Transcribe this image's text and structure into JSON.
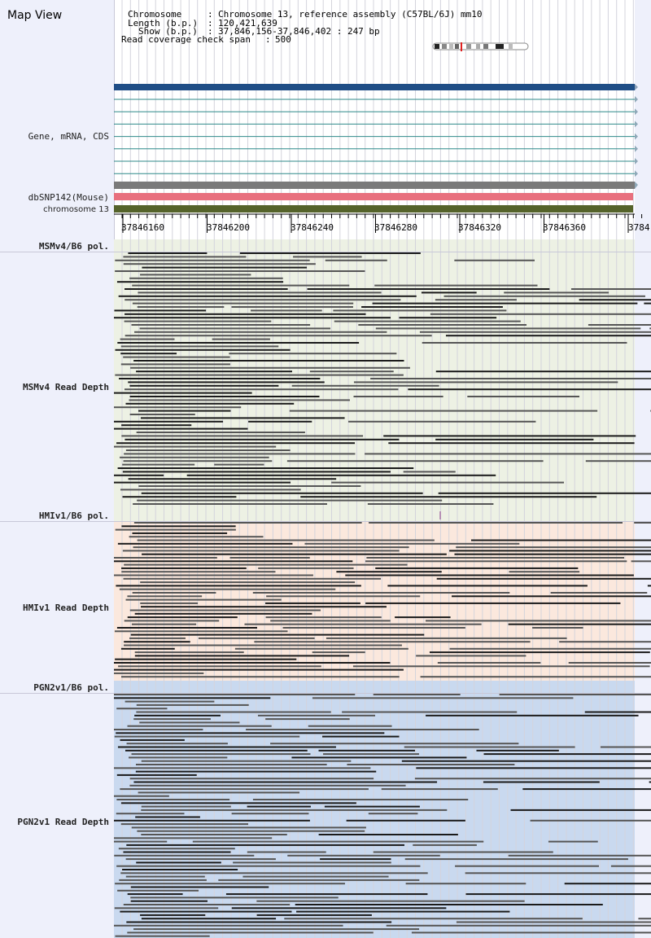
{
  "title": "Map View",
  "info": {
    "chromosome_label": "Chromosome",
    "chromosome_value": "Chromosome 13, reference assembly (C57BL/6J) mm10",
    "length_label": "Length (b.p.)",
    "length_value": "120,421,639",
    "show_label": "Show (b.p.)",
    "show_value": "37,846,156-37,846,402 : 247 bp",
    "read_cov_label": "Read coverage check span",
    "read_cov_value": "500"
  },
  "tracks": {
    "gene": "Gene, mRNA, CDS",
    "dbsnp": "dbSNP142(Mouse)",
    "chromosome": "chromosome 13",
    "msm_pol": "MSMv4/B6 pol.",
    "msm_depth": "MSMv4 Read Depth",
    "hmi_pol": "HMIv1/B6 pol.",
    "hmi_depth": "HMIv1 Read Depth",
    "pgn_pol": "PGN2v1/B6 pol.",
    "pgn_depth": "PGN2v1 Read Depth"
  },
  "ruler": {
    "ticks": [
      "37846160",
      "37846200",
      "37846240",
      "37846280",
      "37846320",
      "37846360",
      "3784"
    ]
  },
  "colors": {
    "gene_main": "#1f4e86",
    "gene_transcript": "#2f8a8a",
    "snp": "#e8707e",
    "chromosome": "#55632a",
    "msm_bg": "#edf1e4",
    "hmi_bg": "#fbe8dd",
    "pgn_bg": "#c9d9ef",
    "read_dark": "#1a1a1a",
    "read_mid": "#555555"
  }
}
